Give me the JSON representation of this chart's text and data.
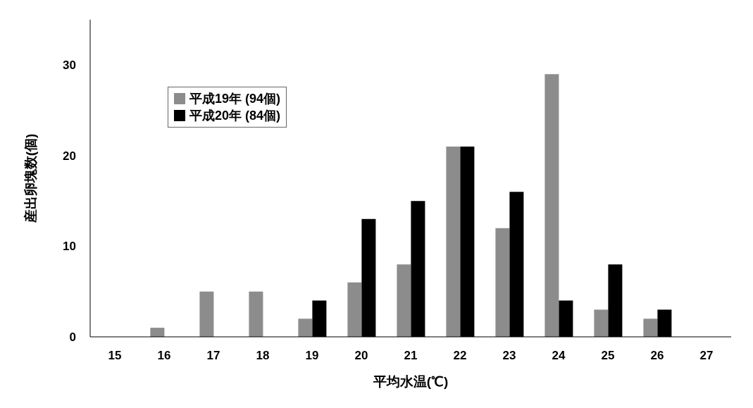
{
  "chart_data": {
    "type": "bar",
    "xlabel": "平均水温(℃)",
    "ylabel": "産出卵塊数(個)",
    "categories": [
      "15",
      "16",
      "17",
      "18",
      "19",
      "20",
      "21",
      "22",
      "23",
      "24",
      "25",
      "26",
      "27"
    ],
    "series": [
      {
        "name": "平成19年 (94個)",
        "color": "#8c8c8c",
        "values": [
          0,
          1,
          5,
          5,
          2,
          6,
          8,
          21,
          12,
          29,
          3,
          2,
          0
        ]
      },
      {
        "name": "平成20年 (84個)",
        "color": "#000000",
        "values": [
          0,
          0,
          0,
          0,
          4,
          13,
          15,
          21,
          16,
          4,
          8,
          3,
          0
        ]
      }
    ],
    "ylim": [
      0,
      35
    ],
    "yticks": [
      0,
      10,
      20,
      30
    ],
    "grid": false,
    "legend": "top left"
  }
}
